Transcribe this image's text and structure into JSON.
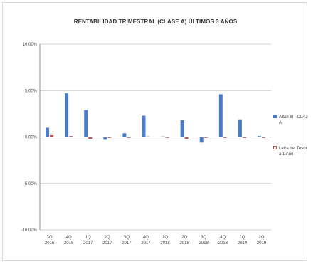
{
  "chart_data": {
    "type": "bar",
    "title": "RENTABILIDAD TRIMESTRAL (CLASE A) ÚLTIMOS 3 AÑOS",
    "categories": [
      [
        "3Q",
        "2016"
      ],
      [
        "4Q",
        "2016"
      ],
      [
        "1Q",
        "2017"
      ],
      [
        "2Q",
        "2017"
      ],
      [
        "3Q",
        "2017"
      ],
      [
        "4Q",
        "2017"
      ],
      [
        "1Q",
        "2018"
      ],
      [
        "2Q",
        "2018"
      ],
      [
        "3Q",
        "2018"
      ],
      [
        "4Q",
        "2018"
      ],
      [
        "1Q",
        "2019"
      ],
      [
        "2Q",
        "2019"
      ]
    ],
    "ylim": [
      -10,
      10
    ],
    "yticks": [
      {
        "value": 10,
        "label": "10,00%"
      },
      {
        "value": 5,
        "label": "5,00%"
      },
      {
        "value": 0,
        "label": "0,00%"
      },
      {
        "value": -5,
        "label": "-5,00%"
      },
      {
        "value": -10,
        "label": "-10,00%"
      }
    ],
    "grid": true,
    "legend_position": "right",
    "series": [
      {
        "name": "Altan III - CLASE A",
        "legend_lines": [
          "Altan III - CLA3",
          "A"
        ],
        "color": "#4a7cc9",
        "values": [
          1.0,
          4.7,
          2.9,
          -0.3,
          0.4,
          2.3,
          0.0,
          1.8,
          -0.6,
          4.6,
          1.9,
          0.1
        ]
      },
      {
        "name": "Letra del Tesoro a 1 Año",
        "legend_lines": [
          "Letra del Tesor",
          "a 1 Año"
        ],
        "color": "#c0504d",
        "values": [
          0.2,
          0.1,
          -0.2,
          -0.1,
          -0.1,
          0.0,
          -0.1,
          -0.2,
          -0.1,
          -0.1,
          -0.1,
          -0.1
        ]
      }
    ]
  }
}
